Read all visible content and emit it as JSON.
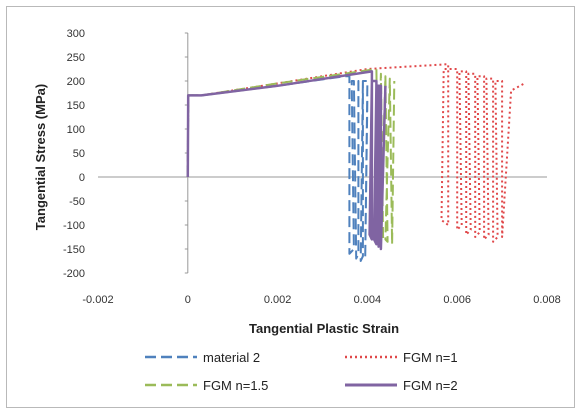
{
  "chart_data": {
    "type": "line",
    "xlabel": "Tangential Plastic Strain",
    "ylabel": "Tangential Stress (MPa)",
    "xlim": [
      -0.002,
      0.008
    ],
    "ylim": [
      -200,
      300
    ],
    "x_ticks": [
      -0.002,
      0,
      0.002,
      0.004,
      0.006,
      0.008
    ],
    "x_tick_labels": [
      "-0.002",
      "0",
      "0.002",
      "0.004",
      "0.006",
      "0.008"
    ],
    "y_ticks": [
      300,
      250,
      200,
      150,
      100,
      50,
      0,
      -50,
      -100,
      -150,
      -200
    ],
    "y_tick_labels": [
      "300",
      "250",
      "200",
      "150",
      "100",
      "50",
      "0",
      "-50",
      "-100",
      "-150",
      "-200"
    ],
    "grid": false,
    "legend_position": "bottom",
    "series": [
      {
        "name": "material 2",
        "color": "#4f81bd",
        "style": "dashed",
        "x": [
          0,
          1e-05,
          0.0003,
          0.002,
          0.0035,
          0.0036,
          0.0036,
          0.0037,
          0.00365,
          0.0037,
          0.00375,
          0.0038,
          0.0038,
          0.0039,
          0.00385,
          0.0039,
          0.0039,
          0.004,
          0.00395,
          0.004
        ],
        "y": [
          0,
          170,
          170,
          190,
          210,
          210,
          -160,
          -150,
          200,
          200,
          -170,
          -160,
          200,
          200,
          -175,
          -165,
          200,
          200,
          -170,
          170
        ]
      },
      {
        "name": "FGM n=1",
        "color": "#e0484a",
        "style": "dotted",
        "x": [
          0,
          1e-05,
          0.0003,
          0.002,
          0.004,
          0.0058,
          0.0058,
          0.00565,
          0.0057,
          0.006,
          0.006,
          0.0061,
          0.00605,
          0.0062,
          0.0062,
          0.0063,
          0.00625,
          0.0064,
          0.0064,
          0.0065,
          0.00645,
          0.0066,
          0.0066,
          0.0067,
          0.00665,
          0.0068,
          0.0068,
          0.0069,
          0.00685,
          0.007,
          0.007,
          0.0072,
          0.0075
        ],
        "y": [
          0,
          170,
          170,
          195,
          225,
          235,
          -100,
          -90,
          225,
          225,
          -110,
          -100,
          220,
          220,
          -120,
          -110,
          215,
          215,
          -125,
          -115,
          210,
          210,
          -130,
          -120,
          205,
          205,
          -135,
          -125,
          200,
          200,
          -125,
          180,
          195
        ]
      },
      {
        "name": "FGM n=1.5",
        "color": "#9bbb59",
        "style": "dashed",
        "x": [
          0,
          1e-05,
          0.0003,
          0.002,
          0.0042,
          0.0042,
          0.00425,
          0.0042,
          0.0043,
          0.0043,
          0.00435,
          0.0043,
          0.0044,
          0.0044,
          0.00445,
          0.0044,
          0.0045,
          0.0045,
          0.00455,
          0.0046
        ],
        "y": [
          0,
          170,
          170,
          195,
          225,
          225,
          -120,
          -110,
          215,
          215,
          -130,
          -120,
          210,
          210,
          -135,
          -130,
          205,
          205,
          -140,
          200
        ]
      },
      {
        "name": "FGM n=2",
        "color": "#8064a2",
        "style": "solid",
        "x": [
          0,
          1e-05,
          0.0003,
          0.002,
          0.0041,
          0.0041,
          0.00405,
          0.0041,
          0.0042,
          0.0042,
          0.00415,
          0.0042,
          0.00425,
          0.00425,
          0.0043,
          0.00425,
          0.0043,
          0.0043,
          0.0044
        ],
        "y": [
          0,
          170,
          170,
          190,
          220,
          -130,
          -120,
          200,
          200,
          -140,
          -130,
          190,
          190,
          -145,
          -140,
          190,
          190,
          -150,
          190
        ]
      }
    ]
  }
}
